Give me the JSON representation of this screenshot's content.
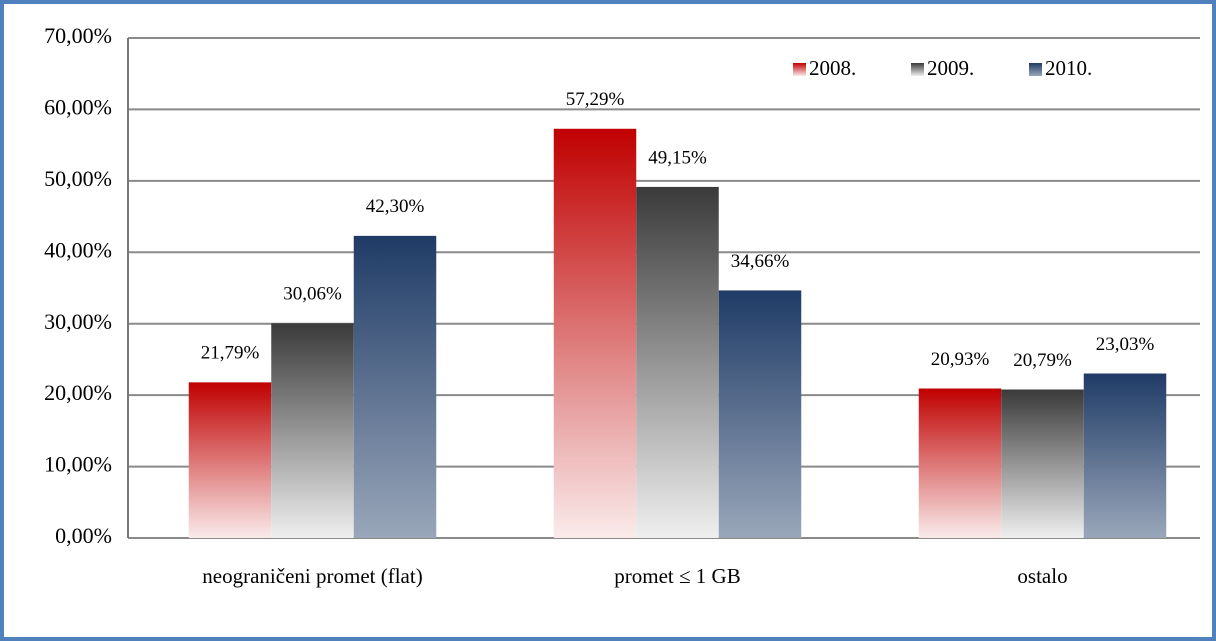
{
  "chart_data": {
    "type": "bar",
    "categories": [
      "neograničeni promet (flat)",
      "promet ≤ 1 GB",
      "ostalo"
    ],
    "series": [
      {
        "name": "2008.",
        "color": "#c00000",
        "values": [
          21.79,
          57.29,
          20.93
        ],
        "value_labels": [
          "21,79%",
          "57,29%",
          "20,93%"
        ]
      },
      {
        "name": "2009.",
        "color": "#3a3a3a",
        "values": [
          30.06,
          49.15,
          20.79
        ],
        "value_labels": [
          "30,06%",
          "49,15%",
          "20,79%"
        ]
      },
      {
        "name": "2010.",
        "color": "#1f3b66",
        "values": [
          42.3,
          34.66,
          23.03
        ],
        "value_labels": [
          "42,30%",
          "34,66%",
          "23,03%"
        ]
      }
    ],
    "ylim": [
      0,
      70
    ],
    "yticks": [
      {
        "value": 0,
        "label": "0,00%"
      },
      {
        "value": 10,
        "label": "10,00%"
      },
      {
        "value": 20,
        "label": "20,00%"
      },
      {
        "value": 30,
        "label": "30,00%"
      },
      {
        "value": 40,
        "label": "40,00%"
      },
      {
        "value": 50,
        "label": "50,00%"
      },
      {
        "value": 60,
        "label": "60,00%"
      },
      {
        "value": 70,
        "label": "70,00%"
      }
    ],
    "grid": true,
    "legend": "top-right"
  }
}
